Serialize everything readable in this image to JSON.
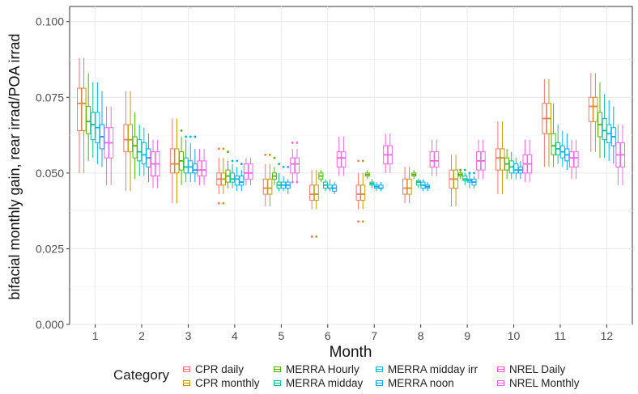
{
  "chart_data": {
    "type": "box",
    "xlabel": "Month",
    "ylabel": "bifacial monthly gain, rear irrad/POA irrad",
    "ylim": [
      0,
      0.105
    ],
    "y_ticks": [
      "0.000",
      "0.025",
      "0.050",
      "0.075",
      "0.100"
    ],
    "categories": [
      "1",
      "2",
      "3",
      "4",
      "5",
      "6",
      "7",
      "8",
      "9",
      "10",
      "11",
      "12"
    ],
    "grid": true,
    "legend": {
      "title": "Category",
      "placement": "bottom"
    },
    "series": [
      {
        "name": "CPR daily",
        "color": "#F8766D",
        "boxes": [
          {
            "low": 0.05,
            "q1": 0.064,
            "median": 0.073,
            "q3": 0.078,
            "high": 0.088
          },
          {
            "low": 0.044,
            "q1": 0.057,
            "median": 0.061,
            "q3": 0.066,
            "high": 0.077
          },
          {
            "low": 0.04,
            "q1": 0.05,
            "median": 0.053,
            "q3": 0.058,
            "high": 0.068
          },
          {
            "low": 0.043,
            "q1": 0.046,
            "median": 0.048,
            "q3": 0.05,
            "high": 0.055,
            "outliers": [
              0.04,
              0.058
            ]
          },
          {
            "low": 0.039,
            "q1": 0.043,
            "median": 0.045,
            "q3": 0.048,
            "high": 0.053,
            "outliers": [
              0.056
            ]
          },
          {
            "low": 0.038,
            "q1": 0.041,
            "median": 0.043,
            "q3": 0.046,
            "high": 0.051,
            "outliers": [
              0.029
            ]
          },
          {
            "low": 0.038,
            "q1": 0.041,
            "median": 0.043,
            "q3": 0.046,
            "high": 0.05,
            "outliers": [
              0.034,
              0.054
            ]
          },
          {
            "low": 0.04,
            "q1": 0.043,
            "median": 0.045,
            "q3": 0.048,
            "high": 0.052
          },
          {
            "low": 0.039,
            "q1": 0.045,
            "median": 0.048,
            "q3": 0.051,
            "high": 0.056
          },
          {
            "low": 0.043,
            "q1": 0.051,
            "median": 0.055,
            "q3": 0.058,
            "high": 0.067
          },
          {
            "low": 0.052,
            "q1": 0.063,
            "median": 0.068,
            "q3": 0.073,
            "high": 0.081
          },
          {
            "low": 0.057,
            "q1": 0.067,
            "median": 0.072,
            "q3": 0.075,
            "high": 0.083
          }
        ]
      },
      {
        "name": "CPR monthly",
        "color": "#C49A00",
        "boxes": [
          {
            "low": 0.05,
            "q1": 0.064,
            "median": 0.073,
            "q3": 0.078,
            "high": 0.088
          },
          {
            "low": 0.044,
            "q1": 0.057,
            "median": 0.061,
            "q3": 0.066,
            "high": 0.077
          },
          {
            "low": 0.04,
            "q1": 0.05,
            "median": 0.053,
            "q3": 0.058,
            "high": 0.068
          },
          {
            "low": 0.043,
            "q1": 0.046,
            "median": 0.048,
            "q3": 0.05,
            "high": 0.055,
            "outliers": [
              0.04,
              0.058
            ]
          },
          {
            "low": 0.039,
            "q1": 0.043,
            "median": 0.045,
            "q3": 0.048,
            "high": 0.053,
            "outliers": [
              0.056
            ]
          },
          {
            "low": 0.038,
            "q1": 0.041,
            "median": 0.043,
            "q3": 0.046,
            "high": 0.051,
            "outliers": [
              0.029
            ]
          },
          {
            "low": 0.038,
            "q1": 0.041,
            "median": 0.043,
            "q3": 0.046,
            "high": 0.05,
            "outliers": [
              0.034,
              0.054
            ]
          },
          {
            "low": 0.04,
            "q1": 0.043,
            "median": 0.045,
            "q3": 0.048,
            "high": 0.052
          },
          {
            "low": 0.039,
            "q1": 0.045,
            "median": 0.048,
            "q3": 0.051,
            "high": 0.056
          },
          {
            "low": 0.043,
            "q1": 0.051,
            "median": 0.055,
            "q3": 0.058,
            "high": 0.067
          },
          {
            "low": 0.052,
            "q1": 0.063,
            "median": 0.068,
            "q3": 0.073,
            "high": 0.081
          },
          {
            "low": 0.057,
            "q1": 0.067,
            "median": 0.072,
            "q3": 0.075,
            "high": 0.083
          }
        ]
      },
      {
        "name": "MERRA Hourly",
        "color": "#53B400",
        "boxes": [
          {
            "low": 0.054,
            "q1": 0.063,
            "median": 0.067,
            "q3": 0.072,
            "high": 0.083
          },
          {
            "low": 0.048,
            "q1": 0.055,
            "median": 0.059,
            "q3": 0.062,
            "high": 0.07
          },
          {
            "low": 0.046,
            "q1": 0.051,
            "median": 0.054,
            "q3": 0.057,
            "high": 0.062,
            "outliers": [
              0.064
            ]
          },
          {
            "low": 0.045,
            "q1": 0.047,
            "median": 0.049,
            "q3": 0.051,
            "high": 0.054,
            "outliers": [
              0.057
            ]
          },
          {
            "low": 0.046,
            "q1": 0.048,
            "median": 0.049,
            "q3": 0.05,
            "high": 0.052,
            "outliers": [
              0.055
            ]
          },
          {
            "low": 0.047,
            "q1": 0.048,
            "median": 0.049,
            "q3": 0.05,
            "high": 0.051
          },
          {
            "low": 0.048,
            "q1": 0.049,
            "median": 0.0495,
            "q3": 0.05,
            "high": 0.051
          },
          {
            "low": 0.048,
            "q1": 0.049,
            "median": 0.0495,
            "q3": 0.05,
            "high": 0.051
          },
          {
            "low": 0.048,
            "q1": 0.049,
            "median": 0.0495,
            "q3": 0.05,
            "high": 0.051,
            "outliers": [
              0.051
            ]
          },
          {
            "low": 0.048,
            "q1": 0.051,
            "median": 0.053,
            "q3": 0.055,
            "high": 0.058
          },
          {
            "low": 0.052,
            "q1": 0.056,
            "median": 0.059,
            "q3": 0.063,
            "high": 0.073
          },
          {
            "low": 0.055,
            "q1": 0.062,
            "median": 0.066,
            "q3": 0.07,
            "high": 0.08
          }
        ]
      },
      {
        "name": "MERRA midday",
        "color": "#00C094",
        "boxes": [
          {
            "low": 0.055,
            "q1": 0.061,
            "median": 0.066,
            "q3": 0.07,
            "high": 0.08
          },
          {
            "low": 0.049,
            "q1": 0.054,
            "median": 0.057,
            "q3": 0.061,
            "high": 0.066
          },
          {
            "low": 0.047,
            "q1": 0.05,
            "median": 0.052,
            "q3": 0.055,
            "high": 0.061,
            "outliers": [
              0.062
            ]
          },
          {
            "low": 0.045,
            "q1": 0.047,
            "median": 0.048,
            "q3": 0.05,
            "high": 0.053,
            "outliers": [
              0.054
            ]
          },
          {
            "low": 0.044,
            "q1": 0.045,
            "median": 0.046,
            "q3": 0.047,
            "high": 0.05,
            "outliers": [
              0.053
            ]
          },
          {
            "low": 0.044,
            "q1": 0.045,
            "median": 0.046,
            "q3": 0.047,
            "high": 0.048
          },
          {
            "low": 0.045,
            "q1": 0.046,
            "median": 0.0465,
            "q3": 0.047,
            "high": 0.048
          },
          {
            "low": 0.045,
            "q1": 0.046,
            "median": 0.047,
            "q3": 0.0475,
            "high": 0.048
          },
          {
            "low": 0.046,
            "q1": 0.0475,
            "median": 0.048,
            "q3": 0.049,
            "high": 0.05,
            "outliers": [
              0.051
            ]
          },
          {
            "low": 0.048,
            "q1": 0.05,
            "median": 0.052,
            "q3": 0.054,
            "high": 0.057
          },
          {
            "low": 0.053,
            "q1": 0.056,
            "median": 0.058,
            "q3": 0.06,
            "high": 0.066
          },
          {
            "low": 0.055,
            "q1": 0.061,
            "median": 0.064,
            "q3": 0.068,
            "high": 0.076
          }
        ]
      },
      {
        "name": "MERRA midday irr",
        "color": "#00B6EB",
        "boxes": [
          {
            "low": 0.053,
            "q1": 0.06,
            "median": 0.065,
            "q3": 0.07,
            "high": 0.08
          },
          {
            "low": 0.049,
            "q1": 0.053,
            "median": 0.056,
            "q3": 0.06,
            "high": 0.065
          },
          {
            "low": 0.047,
            "q1": 0.05,
            "median": 0.052,
            "q3": 0.054,
            "high": 0.06,
            "outliers": [
              0.062
            ]
          },
          {
            "low": 0.044,
            "q1": 0.046,
            "median": 0.048,
            "q3": 0.049,
            "high": 0.052,
            "outliers": [
              0.054
            ]
          },
          {
            "low": 0.044,
            "q1": 0.045,
            "median": 0.046,
            "q3": 0.047,
            "high": 0.049,
            "outliers": [
              0.052
            ]
          },
          {
            "low": 0.044,
            "q1": 0.045,
            "median": 0.045,
            "q3": 0.046,
            "high": 0.048
          },
          {
            "low": 0.044,
            "q1": 0.045,
            "median": 0.0455,
            "q3": 0.046,
            "high": 0.047
          },
          {
            "low": 0.044,
            "q1": 0.045,
            "median": 0.046,
            "q3": 0.047,
            "high": 0.048
          },
          {
            "low": 0.045,
            "q1": 0.047,
            "median": 0.0475,
            "q3": 0.048,
            "high": 0.05,
            "outliers": [
              0.05
            ]
          },
          {
            "low": 0.048,
            "q1": 0.05,
            "median": 0.051,
            "q3": 0.053,
            "high": 0.055
          },
          {
            "low": 0.052,
            "q1": 0.055,
            "median": 0.057,
            "q3": 0.059,
            "high": 0.064
          },
          {
            "low": 0.054,
            "q1": 0.06,
            "median": 0.063,
            "q3": 0.066,
            "high": 0.074
          }
        ]
      },
      {
        "name": "MERRA noon",
        "color": "#06A4FF",
        "boxes": [
          {
            "low": 0.052,
            "q1": 0.058,
            "median": 0.062,
            "q3": 0.066,
            "high": 0.077
          },
          {
            "low": 0.047,
            "q1": 0.052,
            "median": 0.055,
            "q3": 0.058,
            "high": 0.063
          },
          {
            "low": 0.047,
            "q1": 0.05,
            "median": 0.051,
            "q3": 0.053,
            "high": 0.058,
            "outliers": [
              0.062
            ]
          },
          {
            "low": 0.044,
            "q1": 0.046,
            "median": 0.047,
            "q3": 0.049,
            "high": 0.051,
            "outliers": [
              0.053
            ]
          },
          {
            "low": 0.043,
            "q1": 0.045,
            "median": 0.046,
            "q3": 0.047,
            "high": 0.048,
            "outliers": [
              0.052
            ]
          },
          {
            "low": 0.043,
            "q1": 0.044,
            "median": 0.045,
            "q3": 0.046,
            "high": 0.047
          },
          {
            "low": 0.044,
            "q1": 0.045,
            "median": 0.045,
            "q3": 0.046,
            "high": 0.047
          },
          {
            "low": 0.044,
            "q1": 0.045,
            "median": 0.0455,
            "q3": 0.046,
            "high": 0.047
          },
          {
            "low": 0.045,
            "q1": 0.046,
            "median": 0.047,
            "q3": 0.048,
            "high": 0.049,
            "outliers": [
              0.05
            ]
          },
          {
            "low": 0.048,
            "q1": 0.05,
            "median": 0.051,
            "q3": 0.052,
            "high": 0.054
          },
          {
            "low": 0.051,
            "q1": 0.054,
            "median": 0.056,
            "q3": 0.058,
            "high": 0.063
          },
          {
            "low": 0.053,
            "q1": 0.059,
            "median": 0.062,
            "q3": 0.065,
            "high": 0.072
          }
        ]
      },
      {
        "name": "NREL Daily",
        "color": "#FB61D7",
        "boxes": [
          {
            "low": 0.046,
            "q1": 0.055,
            "median": 0.06,
            "q3": 0.065,
            "high": 0.072
          },
          {
            "low": 0.045,
            "q1": 0.049,
            "median": 0.053,
            "q3": 0.057,
            "high": 0.061
          },
          {
            "low": 0.046,
            "q1": 0.049,
            "median": 0.051,
            "q3": 0.054,
            "high": 0.058
          },
          {
            "low": 0.046,
            "q1": 0.048,
            "median": 0.05,
            "q3": 0.053,
            "high": 0.055
          },
          {
            "low": 0.047,
            "q1": 0.05,
            "median": 0.053,
            "q3": 0.055,
            "high": 0.058,
            "outliers": [
              0.047,
              0.06
            ]
          },
          {
            "low": 0.049,
            "q1": 0.052,
            "median": 0.055,
            "q3": 0.057,
            "high": 0.062
          },
          {
            "low": 0.05,
            "q1": 0.053,
            "median": 0.056,
            "q3": 0.059,
            "high": 0.063
          },
          {
            "low": 0.049,
            "q1": 0.052,
            "median": 0.054,
            "q3": 0.057,
            "high": 0.061
          },
          {
            "low": 0.048,
            "q1": 0.051,
            "median": 0.054,
            "q3": 0.057,
            "high": 0.061
          },
          {
            "low": 0.047,
            "q1": 0.05,
            "median": 0.053,
            "q3": 0.056,
            "high": 0.061
          },
          {
            "low": 0.048,
            "q1": 0.052,
            "median": 0.055,
            "q3": 0.057,
            "high": 0.061
          },
          {
            "low": 0.046,
            "q1": 0.052,
            "median": 0.056,
            "q3": 0.06,
            "high": 0.066
          }
        ]
      },
      {
        "name": "NREL Monthly",
        "color": "#E76BF3",
        "boxes": [
          {
            "low": 0.046,
            "q1": 0.055,
            "median": 0.06,
            "q3": 0.065,
            "high": 0.072
          },
          {
            "low": 0.045,
            "q1": 0.049,
            "median": 0.053,
            "q3": 0.057,
            "high": 0.061
          },
          {
            "low": 0.046,
            "q1": 0.049,
            "median": 0.051,
            "q3": 0.054,
            "high": 0.058
          },
          {
            "low": 0.046,
            "q1": 0.048,
            "median": 0.05,
            "q3": 0.053,
            "high": 0.055
          },
          {
            "low": 0.047,
            "q1": 0.05,
            "median": 0.053,
            "q3": 0.055,
            "high": 0.058,
            "outliers": [
              0.047,
              0.06
            ]
          },
          {
            "low": 0.049,
            "q1": 0.052,
            "median": 0.055,
            "q3": 0.057,
            "high": 0.062
          },
          {
            "low": 0.05,
            "q1": 0.053,
            "median": 0.056,
            "q3": 0.059,
            "high": 0.063
          },
          {
            "low": 0.049,
            "q1": 0.052,
            "median": 0.054,
            "q3": 0.057,
            "high": 0.061
          },
          {
            "low": 0.048,
            "q1": 0.051,
            "median": 0.054,
            "q3": 0.057,
            "high": 0.061
          },
          {
            "low": 0.047,
            "q1": 0.05,
            "median": 0.053,
            "q3": 0.056,
            "high": 0.061
          },
          {
            "low": 0.048,
            "q1": 0.052,
            "median": 0.055,
            "q3": 0.057,
            "high": 0.061
          },
          {
            "low": 0.046,
            "q1": 0.052,
            "median": 0.056,
            "q3": 0.06,
            "high": 0.066
          }
        ]
      }
    ]
  }
}
